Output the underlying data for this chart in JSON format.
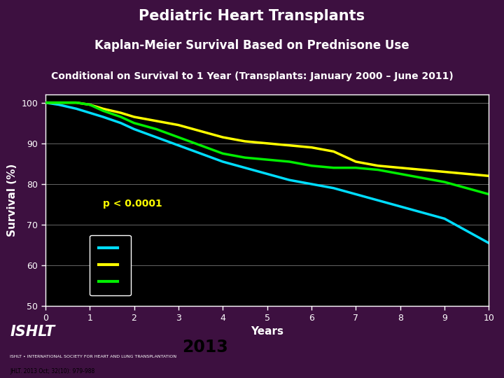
{
  "title1": "Pediatric Heart Transplants",
  "title2": "Kaplan-Meier Survival Based on Prednisone Use",
  "title3": "Conditional on Survival to 1 Year (Transplants: January 2000 – June 2011)",
  "xlabel": "Years",
  "ylabel": "Survival (%)",
  "background_color": "#000000",
  "outer_background": "#3d1040",
  "header_background": "#4a1555",
  "xlim": [
    0,
    10
  ],
  "ylim": [
    50,
    102
  ],
  "yticks": [
    50,
    60,
    70,
    80,
    90,
    100
  ],
  "xticks": [
    0,
    1,
    2,
    3,
    4,
    5,
    6,
    7,
    8,
    9,
    10
  ],
  "pvalue_text": "p < 0.0001",
  "pvalue_color": "#ffff00",
  "grid_color": "#666666",
  "line_cyan": {
    "x": [
      0,
      0.3,
      0.7,
      1.0,
      1.3,
      1.7,
      2.0,
      2.5,
      3.0,
      3.5,
      4.0,
      4.5,
      5.0,
      5.5,
      6.0,
      6.5,
      7.0,
      7.5,
      8.0,
      8.5,
      9.0,
      9.5,
      10.0
    ],
    "y": [
      100,
      99.5,
      98.5,
      97.5,
      96.5,
      95.0,
      93.5,
      91.5,
      89.5,
      87.5,
      85.5,
      84.0,
      82.5,
      81.0,
      80.0,
      79.0,
      77.5,
      76.0,
      74.5,
      73.0,
      71.5,
      68.5,
      65.5
    ],
    "color": "#00ddff",
    "lw": 2.5
  },
  "line_yellow": {
    "x": [
      0,
      0.3,
      0.7,
      1.0,
      1.3,
      1.7,
      2.0,
      2.5,
      3.0,
      3.5,
      4.0,
      4.5,
      5.0,
      5.5,
      6.0,
      6.5,
      7.0,
      7.5,
      8.0,
      8.5,
      9.0,
      9.5,
      10.0
    ],
    "y": [
      100,
      100,
      100,
      99.5,
      98.5,
      97.5,
      96.5,
      95.5,
      94.5,
      93.0,
      91.5,
      90.5,
      90.0,
      89.5,
      89.0,
      88.0,
      85.5,
      84.5,
      84.0,
      83.5,
      83.0,
      82.5,
      82.0
    ],
    "color": "#ffff00",
    "lw": 2.5
  },
  "line_green": {
    "x": [
      0,
      0.3,
      0.7,
      1.0,
      1.3,
      1.7,
      2.0,
      2.5,
      3.0,
      3.5,
      4.0,
      4.5,
      5.0,
      5.5,
      6.0,
      6.5,
      7.0,
      7.5,
      8.0,
      8.5,
      9.0,
      9.5,
      10.0
    ],
    "y": [
      100,
      100,
      100,
      99.5,
      98.0,
      96.5,
      95.0,
      93.5,
      91.5,
      89.5,
      87.5,
      86.5,
      86.0,
      85.5,
      84.5,
      84.0,
      84.0,
      83.5,
      82.5,
      81.5,
      80.5,
      79.0,
      77.5
    ],
    "color": "#00ee00",
    "lw": 2.5
  },
  "year_text": "2013",
  "journal_text": "JHLT. 2013 Oct; 32(10): 979-988"
}
